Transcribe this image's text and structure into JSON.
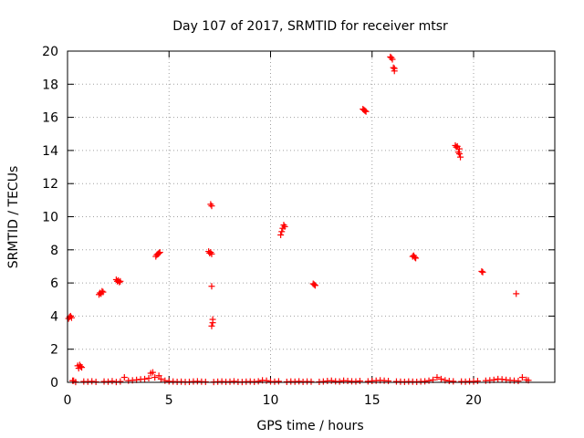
{
  "chart_data": {
    "type": "scatter",
    "title": "Day 107 of 2017, SRMTID for receiver mtsr",
    "xlabel": "GPS time / hours",
    "ylabel": "SRMTID / TECUs",
    "xlim": [
      0,
      24
    ],
    "ylim": [
      0,
      20
    ],
    "xticks": [
      0,
      5,
      10,
      15,
      20
    ],
    "yticks": [
      0,
      2,
      4,
      6,
      8,
      10,
      12,
      14,
      16,
      18,
      20
    ],
    "grid": true,
    "marker": "+",
    "marker_color": "#ff0000",
    "series": [
      {
        "name": "SRMTID",
        "points": [
          [
            0.05,
            3.85
          ],
          [
            0.1,
            3.95
          ],
          [
            0.15,
            4.0
          ],
          [
            0.2,
            3.9
          ],
          [
            0.5,
            1.0
          ],
          [
            0.55,
            0.85
          ],
          [
            0.6,
            1.05
          ],
          [
            0.65,
            0.95
          ],
          [
            0.7,
            0.9
          ],
          [
            1.55,
            5.3
          ],
          [
            1.6,
            5.4
          ],
          [
            1.65,
            5.35
          ],
          [
            1.7,
            5.5
          ],
          [
            1.75,
            5.45
          ],
          [
            2.4,
            6.2
          ],
          [
            2.45,
            6.1
          ],
          [
            2.5,
            6.15
          ],
          [
            2.55,
            6.05
          ],
          [
            2.6,
            6.1
          ],
          [
            4.35,
            7.6
          ],
          [
            4.4,
            7.7
          ],
          [
            4.45,
            7.75
          ],
          [
            4.5,
            7.8
          ],
          [
            4.55,
            7.85
          ],
          [
            6.95,
            7.9
          ],
          [
            7.0,
            7.8
          ],
          [
            7.05,
            7.85
          ],
          [
            7.1,
            7.75
          ],
          [
            7.05,
            10.75
          ],
          [
            7.1,
            10.65
          ],
          [
            7.1,
            5.8
          ],
          [
            7.1,
            3.4
          ],
          [
            7.15,
            3.6
          ],
          [
            7.15,
            3.8
          ],
          [
            10.5,
            8.9
          ],
          [
            10.55,
            9.1
          ],
          [
            10.6,
            9.3
          ],
          [
            10.65,
            9.5
          ],
          [
            10.7,
            9.4
          ],
          [
            12.1,
            5.95
          ],
          [
            12.15,
            5.9
          ],
          [
            12.2,
            5.85
          ],
          [
            14.55,
            16.5
          ],
          [
            14.6,
            16.45
          ],
          [
            14.65,
            16.4
          ],
          [
            14.7,
            16.35
          ],
          [
            15.9,
            19.65
          ],
          [
            15.95,
            19.6
          ],
          [
            16.0,
            19.5
          ],
          [
            16.05,
            19.0
          ],
          [
            16.1,
            18.95
          ],
          [
            16.1,
            18.8
          ],
          [
            17.0,
            7.6
          ],
          [
            17.05,
            7.65
          ],
          [
            17.1,
            7.55
          ],
          [
            17.15,
            7.5
          ],
          [
            19.1,
            14.3
          ],
          [
            19.15,
            14.2
          ],
          [
            19.2,
            14.25
          ],
          [
            19.25,
            13.9
          ],
          [
            19.3,
            13.8
          ],
          [
            19.35,
            13.6
          ],
          [
            19.3,
            14.1
          ],
          [
            20.4,
            6.7
          ],
          [
            20.45,
            6.65
          ],
          [
            22.1,
            5.35
          ],
          [
            4.1,
            0.55
          ],
          [
            4.2,
            0.6
          ],
          [
            4.5,
            0.4
          ],
          [
            2.8,
            0.3
          ],
          [
            18.2,
            0.3
          ],
          [
            21.2,
            0.2
          ],
          [
            22.4,
            0.3
          ],
          [
            0.25,
            0.1
          ],
          [
            0.3,
            0.1
          ],
          [
            0.4,
            0.02
          ],
          [
            0.8,
            0.05
          ],
          [
            1.0,
            0.04
          ],
          [
            1.2,
            0.06
          ],
          [
            1.4,
            0.03
          ],
          [
            1.8,
            0.05
          ],
          [
            2.0,
            0.04
          ],
          [
            2.2,
            0.07
          ],
          [
            2.4,
            0.02
          ],
          [
            2.6,
            0.05
          ],
          [
            3.0,
            0.1
          ],
          [
            3.2,
            0.12
          ],
          [
            3.4,
            0.15
          ],
          [
            3.6,
            0.18
          ],
          [
            3.8,
            0.2
          ],
          [
            4.0,
            0.25
          ],
          [
            4.3,
            0.3
          ],
          [
            4.6,
            0.2
          ],
          [
            4.8,
            0.1
          ],
          [
            5.0,
            0.06
          ],
          [
            5.2,
            0.05
          ],
          [
            5.4,
            0.03
          ],
          [
            5.6,
            0.04
          ],
          [
            5.8,
            0.02
          ],
          [
            6.0,
            0.03
          ],
          [
            6.2,
            0.05
          ],
          [
            6.4,
            0.06
          ],
          [
            6.6,
            0.04
          ],
          [
            6.8,
            0.03
          ],
          [
            7.2,
            0.02
          ],
          [
            7.4,
            0.04
          ],
          [
            7.6,
            0.05
          ],
          [
            7.8,
            0.03
          ],
          [
            8.0,
            0.04
          ],
          [
            8.2,
            0.06
          ],
          [
            8.4,
            0.03
          ],
          [
            8.6,
            0.02
          ],
          [
            8.8,
            0.04
          ],
          [
            9.0,
            0.05
          ],
          [
            9.2,
            0.03
          ],
          [
            9.4,
            0.06
          ],
          [
            9.6,
            0.12
          ],
          [
            9.8,
            0.1
          ],
          [
            10.0,
            0.05
          ],
          [
            10.2,
            0.04
          ],
          [
            10.4,
            0.06
          ],
          [
            10.8,
            0.03
          ],
          [
            11.0,
            0.05
          ],
          [
            11.2,
            0.04
          ],
          [
            11.4,
            0.06
          ],
          [
            11.6,
            0.03
          ],
          [
            11.8,
            0.05
          ],
          [
            12.0,
            0.04
          ],
          [
            12.4,
            0.03
          ],
          [
            12.6,
            0.05
          ],
          [
            12.8,
            0.08
          ],
          [
            13.0,
            0.1
          ],
          [
            13.2,
            0.06
          ],
          [
            13.4,
            0.05
          ],
          [
            13.6,
            0.1
          ],
          [
            13.8,
            0.08
          ],
          [
            14.0,
            0.06
          ],
          [
            14.2,
            0.05
          ],
          [
            14.4,
            0.08
          ],
          [
            14.8,
            0.06
          ],
          [
            15.0,
            0.08
          ],
          [
            15.2,
            0.1
          ],
          [
            15.4,
            0.12
          ],
          [
            15.6,
            0.1
          ],
          [
            15.8,
            0.08
          ],
          [
            16.2,
            0.05
          ],
          [
            16.4,
            0.04
          ],
          [
            16.6,
            0.03
          ],
          [
            16.8,
            0.05
          ],
          [
            17.0,
            0.04
          ],
          [
            17.2,
            0.03
          ],
          [
            17.4,
            0.05
          ],
          [
            17.6,
            0.06
          ],
          [
            17.8,
            0.1
          ],
          [
            18.0,
            0.15
          ],
          [
            18.4,
            0.2
          ],
          [
            18.6,
            0.12
          ],
          [
            18.8,
            0.08
          ],
          [
            19.0,
            0.06
          ],
          [
            19.4,
            0.05
          ],
          [
            19.6,
            0.04
          ],
          [
            19.8,
            0.06
          ],
          [
            20.0,
            0.05
          ],
          [
            20.2,
            0.08
          ],
          [
            20.6,
            0.1
          ],
          [
            20.8,
            0.12
          ],
          [
            21.0,
            0.15
          ],
          [
            21.4,
            0.18
          ],
          [
            21.6,
            0.15
          ],
          [
            21.8,
            0.12
          ],
          [
            22.0,
            0.1
          ],
          [
            22.2,
            0.08
          ],
          [
            22.6,
            0.15
          ],
          [
            22.7,
            0.12
          ]
        ]
      }
    ]
  }
}
